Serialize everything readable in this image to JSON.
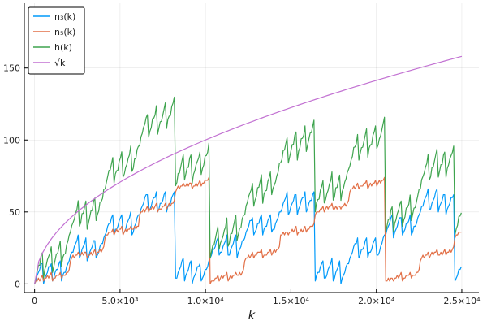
{
  "chart_data": {
    "type": "line",
    "title": "",
    "xlabel": "k",
    "ylabel": "",
    "xlim": [
      -600,
      26000
    ],
    "ylim": [
      -6,
      195
    ],
    "x_ticks": [
      0,
      5000,
      10000,
      15000,
      20000,
      25000
    ],
    "x_tick_labels": [
      "0",
      "5.0×10³",
      "1.0×10⁴",
      "1.5×10⁴",
      "2.0×10⁴",
      "2.5×10⁴"
    ],
    "y_ticks": [
      0,
      50,
      100,
      150
    ],
    "y_tick_labels": [
      "0",
      "50",
      "100",
      "150"
    ],
    "grid": true,
    "legend_position": "top-left",
    "x_range": [
      0,
      25000
    ],
    "series": [
      {
        "name": "n₃(k)",
        "legend_label": "n₃(k)",
        "color": "#009AFA",
        "description": "sawtooth",
        "sample_step": 75
      },
      {
        "name": "n₅(k)",
        "legend_label": "n₅(k)",
        "color": "#E26F46",
        "description": "sawtooth",
        "sample_step": 75
      },
      {
        "name": "h(k)",
        "legend_label": "h(k)",
        "color": "#3EA44E",
        "description": "sawtooth",
        "sample_step": 75
      },
      {
        "name": "√k",
        "legend_label": "√k",
        "color": "#C271D2",
        "description": "sqrt",
        "sample_step": 250
      }
    ]
  }
}
